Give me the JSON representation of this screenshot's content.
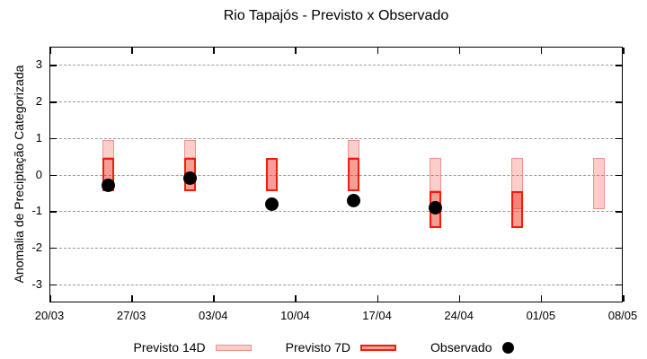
{
  "title": "Rio Tapajós - Previsto x Observado",
  "chart_data": {
    "type": "bar",
    "subtype": "forecast-range-boxes-with-observed-dots",
    "title": "Rio Tapajós - Previsto x Observado",
    "xlabel": "",
    "ylabel": "Anomalia de Preciptação Categorizada",
    "ylim": [
      -3.5,
      3.5
    ],
    "yticks": [
      3,
      2,
      1,
      0,
      -1,
      -2,
      -3
    ],
    "grid": "horizontal-dashed",
    "x_span_days": 49,
    "xtick_interval_days": 7,
    "xtick_labels": [
      "20/03",
      "27/03",
      "03/04",
      "10/04",
      "17/04",
      "24/04",
      "01/05",
      "08/05"
    ],
    "legend_position": "below-plot",
    "legend": [
      {
        "label": "Previsto 14D",
        "swatch": "box",
        "color_key": "previsto14"
      },
      {
        "label": "Previsto 7D",
        "swatch": "box",
        "color_key": "previsto7"
      },
      {
        "label": "Observado",
        "swatch": "dot",
        "color_key": "observado"
      }
    ],
    "clusters": [
      {
        "date": "25/03",
        "day": 5,
        "previsto14": [
          0.45,
          0.95
        ],
        "previsto7": [
          -0.45,
          0.45
        ],
        "observado": -0.3
      },
      {
        "date": "01/04",
        "day": 12,
        "previsto14": [
          0.45,
          0.95
        ],
        "previsto7": [
          -0.45,
          0.45
        ],
        "observado": -0.1
      },
      {
        "date": "08/04",
        "day": 19,
        "previsto14": null,
        "previsto7": [
          -0.45,
          0.45
        ],
        "observado": -0.8
      },
      {
        "date": "15/04",
        "day": 26,
        "previsto14": [
          0.45,
          0.95
        ],
        "previsto7": [
          -0.45,
          0.45
        ],
        "observado": -0.7
      },
      {
        "date": "22/04",
        "day": 33,
        "previsto14": [
          -0.45,
          0.45
        ],
        "previsto7": [
          -1.45,
          -0.45
        ],
        "observado": -0.9
      },
      {
        "date": "29/04",
        "day": 40,
        "previsto14": [
          -0.95,
          0.45
        ],
        "previsto7": [
          -1.45,
          -0.45
        ],
        "observado": null
      },
      {
        "date": "06/05",
        "day": 47,
        "previsto14": [
          -0.95,
          0.45
        ],
        "previsto7": null,
        "observado": null
      }
    ]
  },
  "colors": {
    "previsto14_fill": "rgba(240,50,30,0.24)",
    "previsto14_border": "#ef928b",
    "previsto7_fill": "rgba(240,50,30,0.48)",
    "previsto7_border": "#f31b0c",
    "observado": "#000000",
    "grid": "#9a9a9a",
    "axis": "#000000"
  }
}
